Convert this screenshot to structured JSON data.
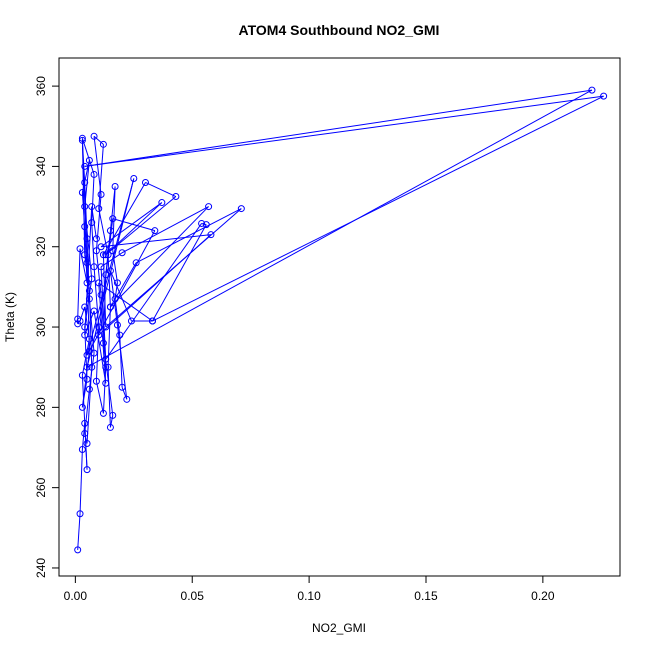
{
  "chart_data": {
    "type": "line",
    "title": "ATOM4 Southbound NO2_GMI",
    "xlabel": "NO2_GMI",
    "ylabel": "Theta (K)",
    "xlim": [
      -0.007,
      0.233
    ],
    "ylim": [
      238,
      367
    ],
    "x_ticks": [
      0.0,
      0.05,
      0.1,
      0.15,
      0.2
    ],
    "x_tick_labels": [
      "0.00",
      "0.05",
      "0.10",
      "0.15",
      "0.20"
    ],
    "y_ticks": [
      240,
      260,
      280,
      300,
      320,
      340,
      360
    ],
    "y_tick_labels": [
      "240",
      "260",
      "280",
      "300",
      "320",
      "340",
      "360"
    ],
    "grid": false,
    "color": "#0000ff",
    "marker": "open-circle",
    "series": [
      {
        "points": [
          [
            0.001,
            244.5
          ],
          [
            0.002,
            253.5
          ],
          [
            0.003,
            269.5
          ],
          [
            0.004,
            276.0
          ],
          [
            0.005,
            264.5
          ],
          [
            0.003,
            288.0
          ],
          [
            0.006,
            297.0
          ],
          [
            0.004,
            305.0
          ],
          [
            0.002,
            301.5
          ],
          [
            0.001,
            300.8
          ],
          [
            0.001,
            302.0
          ],
          [
            0.002,
            319.5
          ],
          [
            0.005,
            311.0
          ],
          [
            0.004,
            325.0
          ],
          [
            0.003,
            333.5
          ],
          [
            0.006,
            341.5
          ],
          [
            0.004,
            330.0
          ],
          [
            0.007,
            312.0
          ],
          [
            0.004,
            300.0
          ],
          [
            0.005,
            287.0
          ],
          [
            0.003,
            280.0
          ],
          [
            0.006,
            294.0
          ],
          [
            0.005,
            316.0
          ],
          [
            0.003,
            346.5
          ],
          [
            0.004,
            336.0
          ],
          [
            0.005,
            322.0
          ],
          [
            0.006,
            307.0
          ],
          [
            0.008,
            293.5
          ],
          [
            0.006,
            284.5
          ],
          [
            0.004,
            273.5
          ],
          [
            0.005,
            271.0
          ],
          [
            0.007,
            290.0
          ],
          [
            0.006,
            309.0
          ],
          [
            0.004,
            318.0
          ],
          [
            0.003,
            347.0
          ],
          [
            0.008,
            338.0
          ],
          [
            0.007,
            326.0
          ],
          [
            0.008,
            315.0
          ],
          [
            0.01,
            300.0
          ],
          [
            0.009,
            286.5
          ],
          [
            0.012,
            278.5
          ],
          [
            0.013,
            290.0
          ],
          [
            0.011,
            308.0
          ],
          [
            0.009,
            319.0
          ],
          [
            0.011,
            333.0
          ],
          [
            0.008,
            347.5
          ],
          [
            0.012,
            345.5
          ],
          [
            0.01,
            329.5
          ],
          [
            0.014,
            318.0
          ],
          [
            0.015,
            305.0
          ],
          [
            0.014,
            290.0
          ],
          [
            0.015,
            275.0
          ],
          [
            0.016,
            278.0
          ],
          [
            0.012,
            296.0
          ],
          [
            0.013,
            313.0
          ],
          [
            0.015,
            324.0
          ],
          [
            0.017,
            335.0
          ],
          [
            0.016,
            319.0
          ],
          [
            0.018,
            311.0
          ],
          [
            0.017,
            307.0
          ],
          [
            0.019,
            298.0
          ],
          [
            0.02,
            285.0
          ],
          [
            0.022,
            282.0
          ],
          [
            0.018,
            300.5
          ],
          [
            0.015,
            314.0
          ],
          [
            0.024,
            301.5
          ],
          [
            0.033,
            301.5
          ],
          [
            0.056,
            325.5
          ],
          [
            0.054,
            325.8
          ],
          [
            0.013,
            292.0
          ],
          [
            0.011,
            315.0
          ],
          [
            0.02,
            318.5
          ],
          [
            0.057,
            330.0
          ],
          [
            0.015,
            305.0
          ],
          [
            0.026,
            316.0
          ],
          [
            0.071,
            329.5
          ],
          [
            0.013,
            300.0
          ],
          [
            0.012,
            318.0
          ],
          [
            0.03,
            336.0
          ],
          [
            0.043,
            332.5
          ],
          [
            0.013,
            318.0
          ],
          [
            0.037,
            331.0
          ],
          [
            0.011,
            320.0
          ],
          [
            0.058,
            323.0
          ],
          [
            0.01,
            298.0
          ],
          [
            0.016,
            327.0
          ],
          [
            0.034,
            324.0
          ],
          [
            0.005,
            293.0
          ],
          [
            0.025,
            337.0
          ],
          [
            0.005,
            290.0
          ],
          [
            0.221,
            359.0
          ],
          [
            0.004,
            340.0
          ],
          [
            0.226,
            357.5
          ],
          [
            0.033,
            301.5
          ],
          [
            0.01,
            311.0
          ],
          [
            0.013,
            286.0
          ],
          [
            0.008,
            304.0
          ],
          [
            0.004,
            298.0
          ],
          [
            0.007,
            330.0
          ],
          [
            0.009,
            322.0
          ]
        ]
      }
    ]
  }
}
